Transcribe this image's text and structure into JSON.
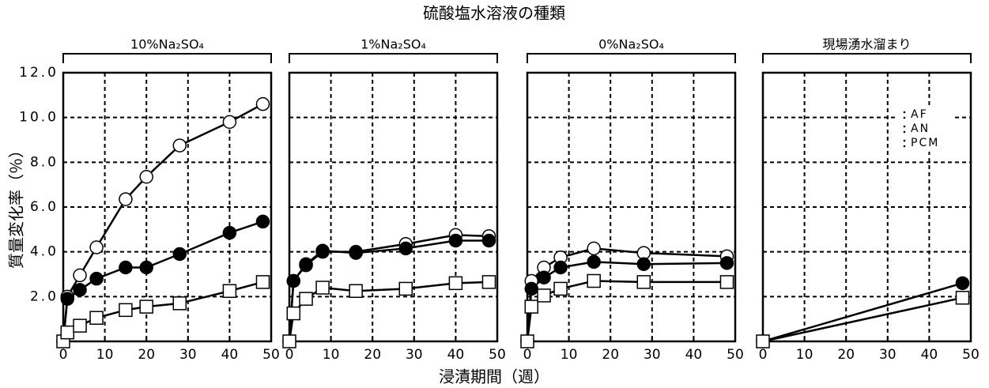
{
  "title": "硫酸塩水溶液の種類",
  "x_label": "浸漬期間（週）",
  "y_label": "質量変化率（％）",
  "chart_data": [
    {
      "type": "line",
      "title": "10%Na₂SO₄",
      "xlim": [
        0,
        50
      ],
      "ylim": [
        0,
        12
      ],
      "xticks": [
        0,
        10,
        20,
        30,
        40,
        50
      ],
      "yticks": [
        {
          "value": 2,
          "label": "2.0"
        },
        {
          "value": 4,
          "label": "4.0"
        },
        {
          "value": 6,
          "label": "6.0"
        },
        {
          "value": 8,
          "label": "8.0"
        },
        {
          "value": 10,
          "label": "10.0"
        },
        {
          "value": 12,
          "label": "12.0"
        }
      ],
      "grid": true,
      "x": [
        0,
        1,
        4,
        8,
        15,
        20,
        28,
        40,
        48
      ],
      "series": [
        {
          "name": "AF",
          "color": "#000000",
          "marker": "open-circle",
          "values": [
            0,
            2.0,
            2.95,
            4.2,
            6.35,
            7.35,
            8.75,
            9.8,
            10.6
          ]
        },
        {
          "name": "AN",
          "color": "#000000",
          "marker": "filled-circle",
          "values": [
            0,
            1.9,
            2.3,
            2.8,
            3.3,
            3.3,
            3.9,
            4.85,
            5.35
          ]
        },
        {
          "name": "PCM",
          "color": "#000000",
          "marker": "open-square",
          "values": [
            0,
            0.4,
            0.7,
            1.05,
            1.4,
            1.55,
            1.7,
            2.25,
            2.65
          ]
        }
      ]
    },
    {
      "type": "line",
      "title": "1%Na₂SO₄",
      "xlim": [
        0,
        50
      ],
      "ylim": [
        0,
        12
      ],
      "xticks": [
        0,
        10,
        20,
        30,
        40,
        50
      ],
      "yticks": [
        2,
        4,
        6,
        8,
        10,
        12
      ],
      "grid": true,
      "x": [
        0,
        1,
        4,
        8,
        16,
        28,
        40,
        48
      ],
      "series": [
        {
          "name": "AF",
          "color": "#000000",
          "marker": "open-circle",
          "values": [
            0,
            2.7,
            3.4,
            4.0,
            4.0,
            4.35,
            4.75,
            4.7
          ]
        },
        {
          "name": "AN",
          "color": "#000000",
          "marker": "filled-circle",
          "values": [
            0,
            2.7,
            3.45,
            4.05,
            3.95,
            4.15,
            4.5,
            4.5
          ]
        },
        {
          "name": "PCM",
          "color": "#000000",
          "marker": "open-square",
          "values": [
            0,
            1.25,
            1.9,
            2.4,
            2.25,
            2.35,
            2.6,
            2.65
          ]
        }
      ]
    },
    {
      "type": "line",
      "title": "0%Na₂SO₄",
      "xlim": [
        0,
        50
      ],
      "ylim": [
        0,
        12
      ],
      "xticks": [
        0,
        10,
        20,
        30,
        40,
        50
      ],
      "yticks": [
        2,
        4,
        6,
        8,
        10,
        12
      ],
      "grid": true,
      "x": [
        0,
        1,
        4,
        8,
        16,
        28,
        48
      ],
      "series": [
        {
          "name": "AF",
          "color": "#000000",
          "marker": "open-circle",
          "values": [
            0,
            2.7,
            3.3,
            3.75,
            4.15,
            3.95,
            3.8
          ]
        },
        {
          "name": "AN",
          "color": "#000000",
          "marker": "filled-circle",
          "values": [
            0,
            2.35,
            2.85,
            3.3,
            3.55,
            3.45,
            3.5
          ]
        },
        {
          "name": "PCM",
          "color": "#000000",
          "marker": "open-square",
          "values": [
            0,
            1.55,
            2.05,
            2.35,
            2.7,
            2.65,
            2.65
          ]
        }
      ]
    },
    {
      "type": "line",
      "title": "現場湧水溜まり",
      "xlim": [
        0,
        50
      ],
      "ylim": [
        0,
        12
      ],
      "xticks": [
        0,
        10,
        20,
        30,
        40,
        50
      ],
      "yticks": [
        2,
        4,
        6,
        8,
        10,
        12
      ],
      "grid": true,
      "legend": "upper right",
      "x": [
        0,
        48
      ],
      "series": [
        {
          "name": "AF",
          "color": "#000000",
          "marker": "open-circle",
          "values": [
            null,
            null
          ]
        },
        {
          "name": "AN",
          "color": "#000000",
          "marker": "filled-circle",
          "values": [
            0,
            2.6
          ]
        },
        {
          "name": "PCM",
          "color": "#000000",
          "marker": "open-square",
          "values": [
            0,
            1.95
          ]
        }
      ]
    }
  ]
}
